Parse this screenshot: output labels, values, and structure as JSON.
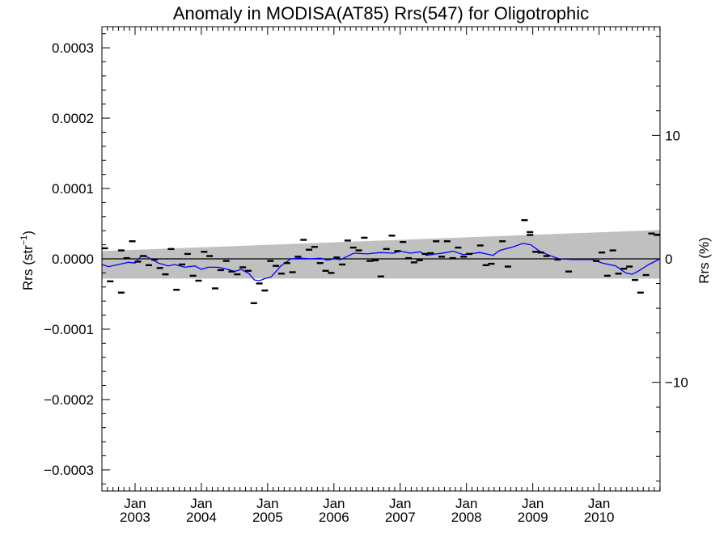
{
  "chart_data": {
    "type": "scatter",
    "title": "Anomaly in MODISA(AT85) Rrs(547) for Oligotrophic",
    "ylabel_left_main": "Rrs (str",
    "ylabel_left_sup": "−1",
    "ylabel_left_close": ")",
    "ylabel_right": "Rrs (%)",
    "x_range": [
      2002.5,
      2010.92
    ],
    "y_range": [
      -0.00033,
      0.00033
    ],
    "y2_range": [
      -18.8,
      18.8
    ],
    "x_ticks": [
      {
        "pos": 2003.0,
        "month": "Jan",
        "year": "2003"
      },
      {
        "pos": 2004.0,
        "month": "Jan",
        "year": "2004"
      },
      {
        "pos": 2005.0,
        "month": "Jan",
        "year": "2005"
      },
      {
        "pos": 2006.0,
        "month": "Jan",
        "year": "2006"
      },
      {
        "pos": 2007.0,
        "month": "Jan",
        "year": "2007"
      },
      {
        "pos": 2008.0,
        "month": "Jan",
        "year": "2008"
      },
      {
        "pos": 2009.0,
        "month": "Jan",
        "year": "2009"
      },
      {
        "pos": 2010.0,
        "month": "Jan",
        "year": "2010"
      }
    ],
    "y_ticks": [
      {
        "value": 0.0003,
        "label": "0.0003"
      },
      {
        "value": 0.0002,
        "label": "0.0002"
      },
      {
        "value": 0.0001,
        "label": "0.0001"
      },
      {
        "value": 0.0,
        "label": "0.0000"
      },
      {
        "value": -0.0001,
        "label": "−0.0001"
      },
      {
        "value": -0.0002,
        "label": "−0.0002"
      },
      {
        "value": -0.0003,
        "label": "−0.0003"
      }
    ],
    "y2_ticks": [
      {
        "value": 10,
        "label": "10"
      },
      {
        "value": 0,
        "label": "0"
      },
      {
        "value": -10,
        "label": "−10"
      }
    ],
    "band": {
      "x": [
        2002.5,
        2010.92
      ],
      "upper": [
        1.1e-05,
        4.1e-05
      ],
      "lower": [
        -2.8e-05,
        -2.8e-05
      ],
      "color": "#c0c0c0"
    },
    "zero_line": 0.0,
    "scatter_points": [
      [
        2002.542,
        1.5e-05
      ],
      [
        2002.625,
        -3.2e-05
      ],
      [
        2002.792,
        -4.8e-05
      ],
      [
        2002.792,
        1.2e-05
      ],
      [
        2002.875,
        1e-06
      ],
      [
        2002.958,
        2.5e-05
      ],
      [
        2003.042,
        -4e-06
      ],
      [
        2003.125,
        4e-06
      ],
      [
        2003.208,
        -9e-06
      ],
      [
        2003.292,
        -1e-06
      ],
      [
        2003.375,
        -1.3e-05
      ],
      [
        2003.458,
        -2.2e-05
      ],
      [
        2003.542,
        1.4e-05
      ],
      [
        2003.625,
        -4.4e-05
      ],
      [
        2003.708,
        -8e-06
      ],
      [
        2003.792,
        7e-06
      ],
      [
        2003.875,
        -2.4e-05
      ],
      [
        2003.958,
        -3.1e-05
      ],
      [
        2004.042,
        1e-05
      ],
      [
        2004.125,
        4e-06
      ],
      [
        2004.208,
        -4.2e-05
      ],
      [
        2004.292,
        -1.6e-05
      ],
      [
        2004.375,
        -3e-06
      ],
      [
        2004.458,
        -1.8e-05
      ],
      [
        2004.542,
        -2.2e-05
      ],
      [
        2004.625,
        -1.2e-05
      ],
      [
        2004.708,
        -1.7e-05
      ],
      [
        2004.792,
        -6.3e-05
      ],
      [
        2004.875,
        -3.5e-05
      ],
      [
        2004.958,
        -4.5e-05
      ],
      [
        2005.042,
        -3e-06
      ],
      [
        2005.125,
        -1e-05
      ],
      [
        2005.208,
        -2.1e-05
      ],
      [
        2005.292,
        -6e-06
      ],
      [
        2005.375,
        -1.9e-05
      ],
      [
        2005.458,
        3e-06
      ],
      [
        2005.542,
        2.7e-05
      ],
      [
        2005.625,
        1.3e-05
      ],
      [
        2005.708,
        1.7e-05
      ],
      [
        2005.792,
        -6e-06
      ],
      [
        2005.875,
        -1.7e-05
      ],
      [
        2005.958,
        -2e-05
      ],
      [
        2006.042,
        2e-06
      ],
      [
        2006.125,
        -8e-06
      ],
      [
        2006.208,
        2.6e-05
      ],
      [
        2006.292,
        1.6e-05
      ],
      [
        2006.375,
        1.2e-05
      ],
      [
        2006.458,
        3e-05
      ],
      [
        2006.542,
        -3e-06
      ],
      [
        2006.625,
        -2e-06
      ],
      [
        2006.708,
        -2.5e-05
      ],
      [
        2006.792,
        1.4e-05
      ],
      [
        2006.875,
        3.3e-05
      ],
      [
        2006.958,
        1.1e-05
      ],
      [
        2007.042,
        2.4e-05
      ],
      [
        2007.125,
        1e-06
      ],
      [
        2007.208,
        -5e-06
      ],
      [
        2007.292,
        -2e-06
      ],
      [
        2007.375,
        7e-06
      ],
      [
        2007.458,
        8e-06
      ],
      [
        2007.542,
        2.5e-05
      ],
      [
        2007.625,
        3e-06
      ],
      [
        2007.708,
        2.5e-05
      ],
      [
        2007.792,
        1e-06
      ],
      [
        2007.875,
        1.6e-05
      ],
      [
        2007.958,
        3e-06
      ],
      [
        2008.042,
        7e-06
      ],
      [
        2008.208,
        1.9e-05
      ],
      [
        2008.292,
        -9e-06
      ],
      [
        2008.375,
        -7e-06
      ],
      [
        2008.542,
        2.5e-05
      ],
      [
        2008.625,
        -1.1e-05
      ],
      [
        2008.875,
        5.5e-05
      ],
      [
        2008.958,
        3.8e-05
      ],
      [
        2008.958,
        3.4e-05
      ],
      [
        2009.042,
        1e-05
      ],
      [
        2009.125,
        9e-06
      ],
      [
        2009.208,
        4e-06
      ],
      [
        2009.375,
        -1e-06
      ],
      [
        2009.542,
        -1.8e-05
      ],
      [
        2009.958,
        -3e-06
      ],
      [
        2010.042,
        9e-06
      ],
      [
        2010.125,
        -2.4e-05
      ],
      [
        2010.208,
        1.2e-05
      ],
      [
        2010.292,
        -2.1e-05
      ],
      [
        2010.375,
        -1.4e-05
      ],
      [
        2010.458,
        -1.1e-05
      ],
      [
        2010.542,
        -3e-05
      ],
      [
        2010.625,
        -4.8e-05
      ],
      [
        2010.708,
        -2.3e-05
      ],
      [
        2010.792,
        3.6e-05
      ],
      [
        2010.875,
        3.4e-05
      ]
    ],
    "running_mean": [
      [
        2002.5,
        -8e-06
      ],
      [
        2002.6,
        -1.1e-05
      ],
      [
        2002.75,
        -8e-06
      ],
      [
        2002.9,
        -5e-06
      ],
      [
        2003.0,
        -6e-06
      ],
      [
        2003.1,
        5e-06
      ],
      [
        2003.2,
        2e-06
      ],
      [
        2003.35,
        -6e-06
      ],
      [
        2003.5,
        -1e-05
      ],
      [
        2003.6,
        -8e-06
      ],
      [
        2003.75,
        -1.2e-05
      ],
      [
        2003.9,
        -1e-05
      ],
      [
        2004.0,
        -1.5e-05
      ],
      [
        2004.1,
        -1.2e-05
      ],
      [
        2004.25,
        -1.2e-05
      ],
      [
        2004.4,
        -1.5e-05
      ],
      [
        2004.5,
        -1.8e-05
      ],
      [
        2004.6,
        -1.5e-05
      ],
      [
        2004.72,
        -2.1e-05
      ],
      [
        2004.8,
        -3e-05
      ],
      [
        2004.88,
        -3.1e-05
      ],
      [
        2004.96,
        -2.8e-05
      ],
      [
        2005.05,
        -2.6e-05
      ],
      [
        2005.2,
        -1e-05
      ],
      [
        2005.35,
        0.0
      ],
      [
        2005.5,
        1e-06
      ],
      [
        2005.65,
        0.0
      ],
      [
        2005.8,
        1e-06
      ],
      [
        2005.9,
        -2e-06
      ],
      [
        2006.0,
        0.0
      ],
      [
        2006.1,
        -1e-06
      ],
      [
        2006.3,
        8e-06
      ],
      [
        2006.5,
        7e-06
      ],
      [
        2006.7,
        9e-06
      ],
      [
        2006.9,
        8e-06
      ],
      [
        2007.0,
        1.1e-05
      ],
      [
        2007.15,
        8e-06
      ],
      [
        2007.3,
        1e-05
      ],
      [
        2007.4,
        5e-06
      ],
      [
        2007.55,
        7e-06
      ],
      [
        2007.7,
        9e-06
      ],
      [
        2007.8,
        1.1e-05
      ],
      [
        2007.95,
        6e-06
      ],
      [
        2008.2,
        9e-06
      ],
      [
        2008.4,
        5e-06
      ],
      [
        2008.5,
        1.2e-05
      ],
      [
        2008.7,
        1.7e-05
      ],
      [
        2008.85,
        2.2e-05
      ],
      [
        2008.97,
        2e-05
      ],
      [
        2009.1,
        1.1e-05
      ],
      [
        2009.25,
        5e-06
      ],
      [
        2009.4,
        0.0
      ],
      [
        2009.6,
        -1e-06
      ],
      [
        2009.8,
        -1e-06
      ],
      [
        2009.9,
        -1e-06
      ],
      [
        2010.05,
        -6e-06
      ],
      [
        2010.25,
        -1e-05
      ],
      [
        2010.4,
        -2e-05
      ],
      [
        2010.5,
        -2.2e-05
      ],
      [
        2010.6,
        -1.7e-05
      ],
      [
        2010.75,
        -8e-06
      ],
      [
        2010.92,
        0.0
      ]
    ],
    "colors": {
      "running_mean": "#0000ff",
      "band": "#c0c0c0",
      "points": "#000000"
    },
    "grid": false
  }
}
